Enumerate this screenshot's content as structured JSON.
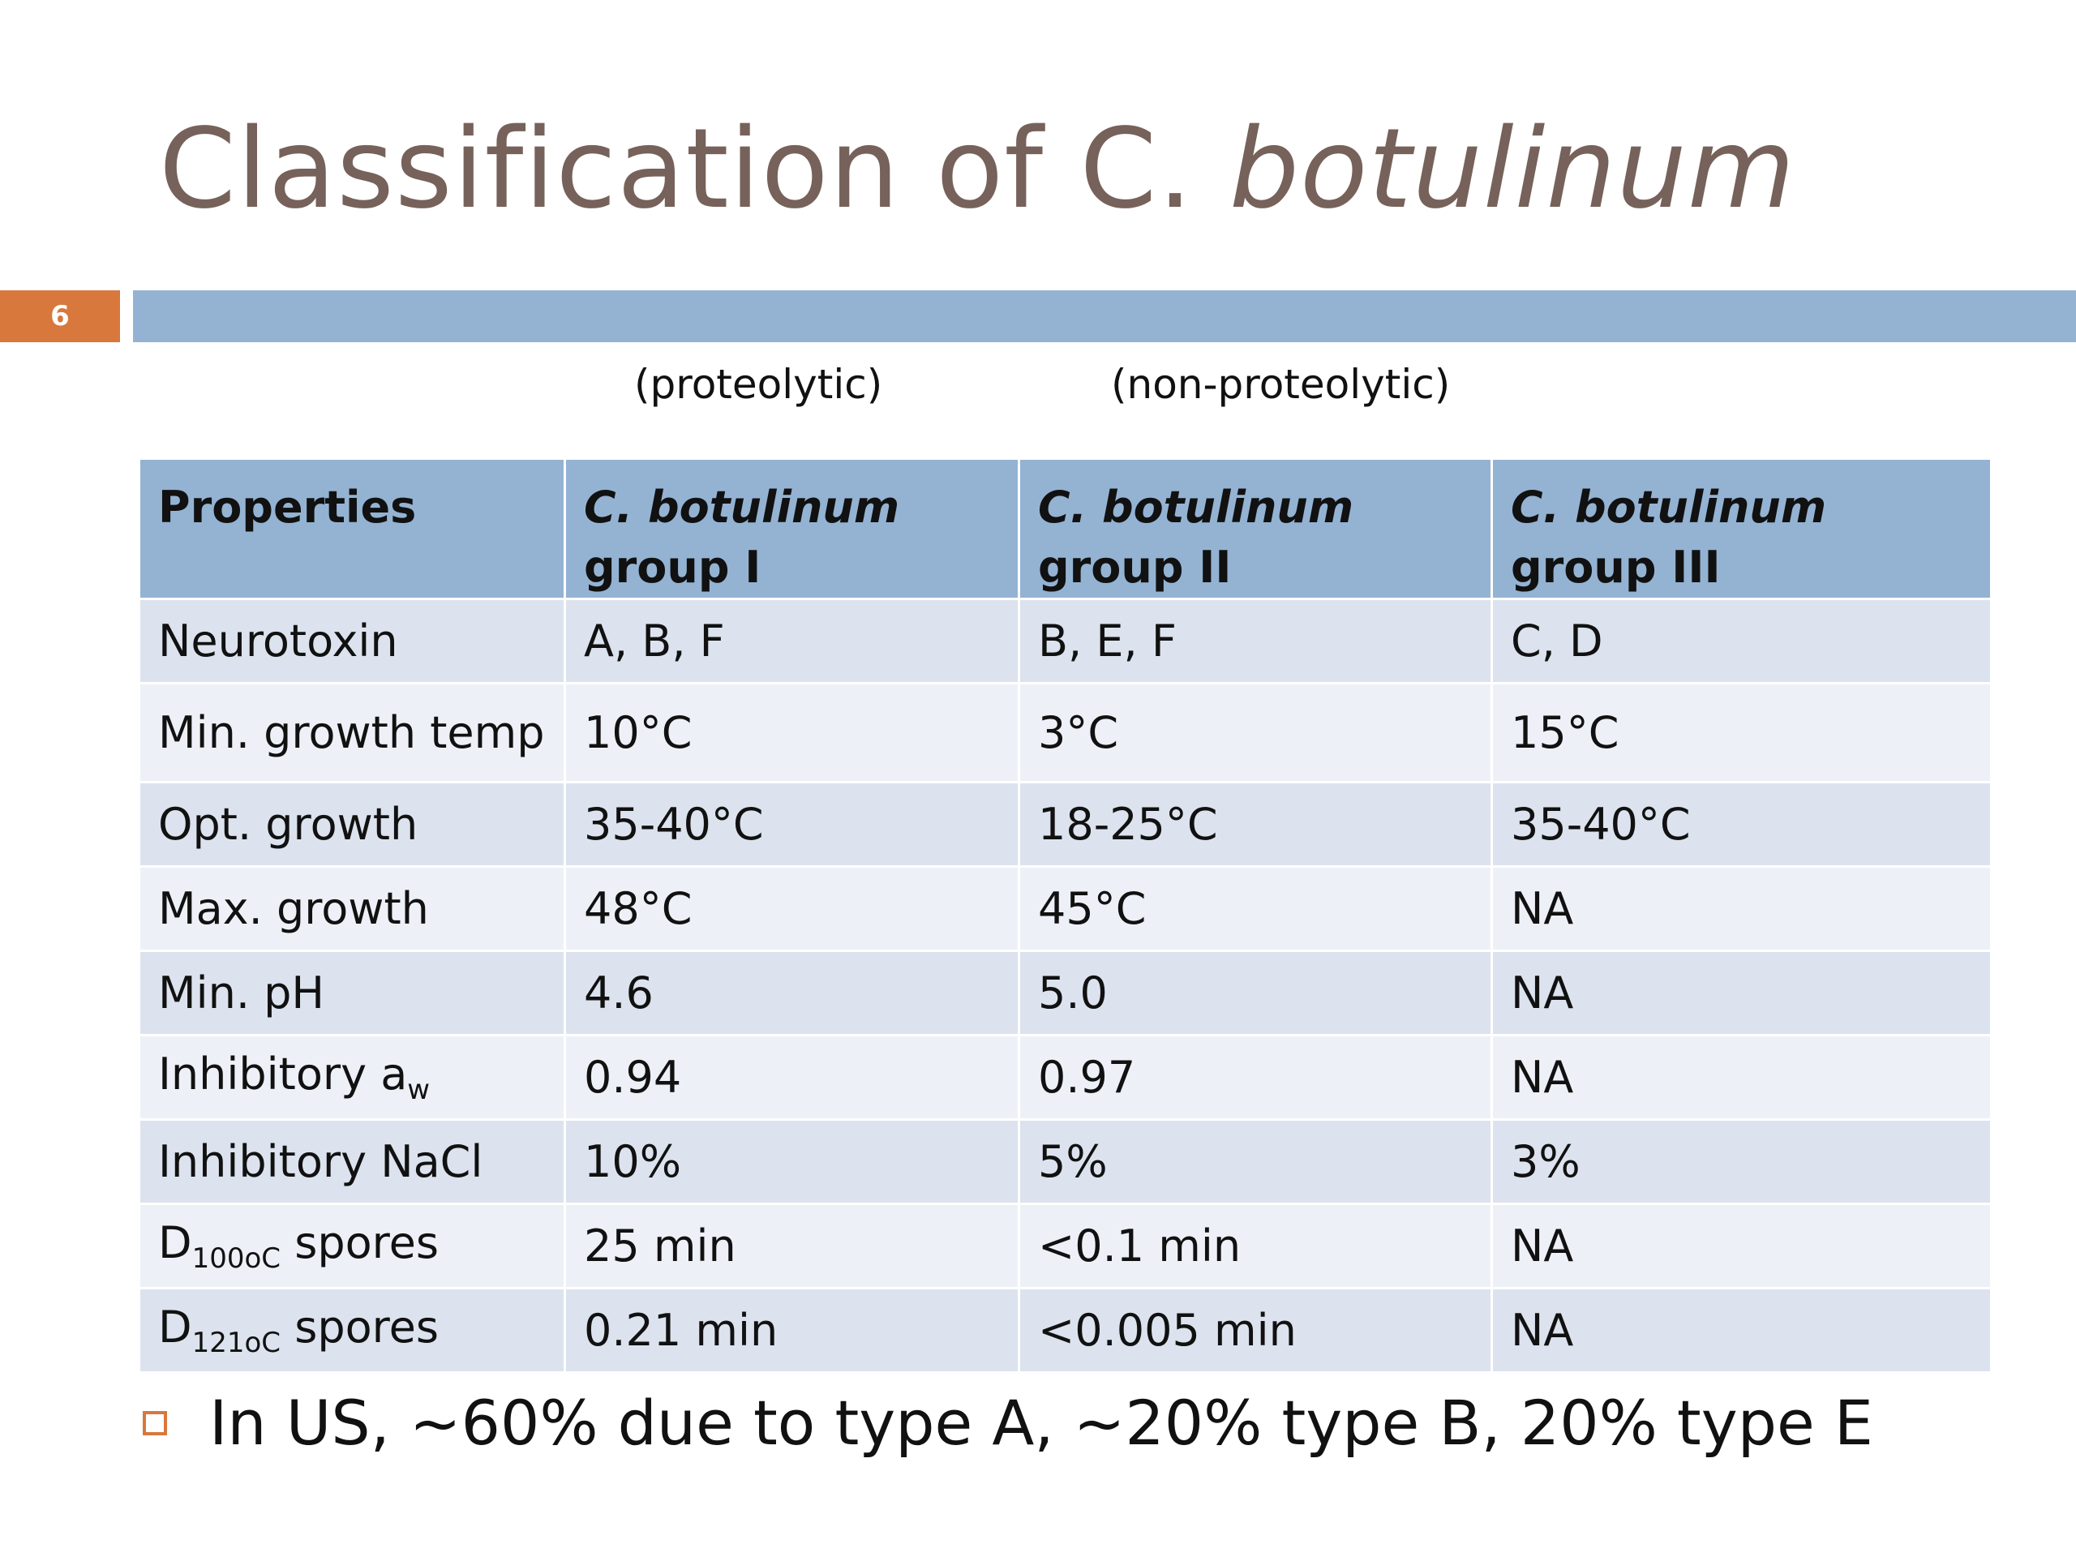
{
  "title": {
    "main": "Classification of C. ",
    "italic": "botulinum"
  },
  "slide_number": "6",
  "column_notes": {
    "group1": "(proteolytic)",
    "group2": "(non-proteolytic)"
  },
  "table": {
    "headers": {
      "properties": "Properties",
      "g1_italic": "C. botulinum",
      "g1_rest": " group I",
      "g2_italic": "C. botulinum",
      "g2_rest": " group II",
      "g3_italic": "C. botulinum",
      "g3_rest": " group III"
    },
    "rows": [
      {
        "label": "Neurotoxin",
        "g1": "A, B, F",
        "g2": "B, E, F",
        "g3": "C, D"
      },
      {
        "label": "Min. growth temp",
        "g1": "10°C",
        "g2": "3°C",
        "g3": "15°C"
      },
      {
        "label": "Opt. growth",
        "g1": "35-40°C",
        "g2": "18-25°C",
        "g3": "35-40°C"
      },
      {
        "label": "Max. growth",
        "g1": "48°C",
        "g2": "45°C",
        "g3": "NA"
      },
      {
        "label": "Min. pH",
        "g1": "4.6",
        "g2": "5.0",
        "g3": "NA"
      },
      {
        "label": "Inhibitory a",
        "label_sub": "w",
        "g1": "0.94",
        "g2": "0.97",
        "g3": "NA"
      },
      {
        "label": "Inhibitory NaCl",
        "g1": "10%",
        "g2": "5%",
        "g3": "3%"
      },
      {
        "label": "D",
        "label_sub": "100oC",
        "label_rest": " spores",
        "g1": "25 min",
        "g2": "<0.1 min",
        "g3": "NA"
      },
      {
        "label": "D",
        "label_sub": "121oC",
        "label_rest": " spores",
        "g1": "0.21 min",
        "g2": "<0.005 min",
        "g3": "NA"
      }
    ]
  },
  "bullets": [
    "In US, ~60% due to type A, ~20% type B, 20% type E"
  ],
  "colors": {
    "title": "#76625a",
    "accent_blue": "#94b3d3",
    "accent_orange": "#d8783d"
  }
}
